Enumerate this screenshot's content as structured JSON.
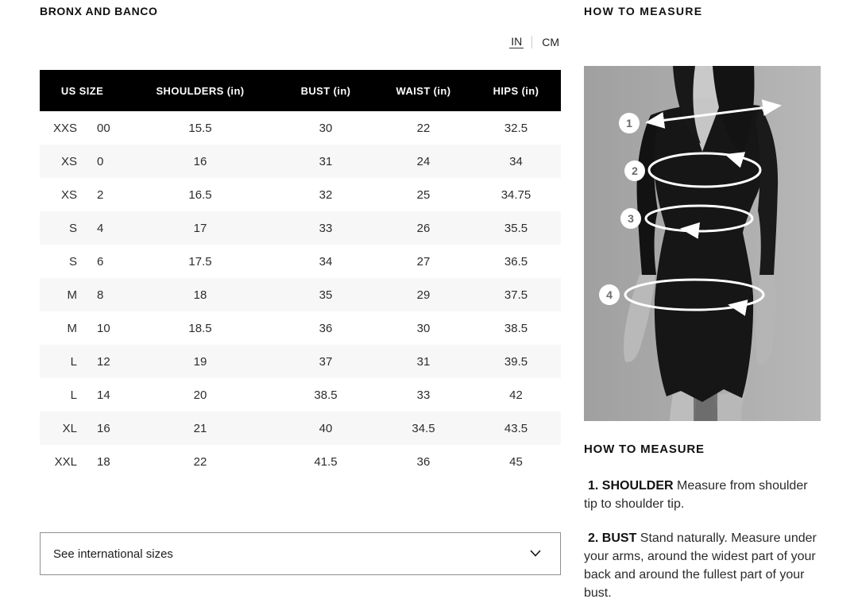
{
  "brand": "BRONX AND BANCO",
  "unit_toggle": {
    "in_label": "IN",
    "cm_label": "CM",
    "active": "IN"
  },
  "size_table": {
    "headers": [
      "US SIZE",
      "SHOULDERS (in)",
      "BUST (in)",
      "WAIST (in)",
      "HIPS (in)"
    ],
    "rows": [
      {
        "size": "XXS",
        "us": "00",
        "shoulders": "15.5",
        "bust": "30",
        "waist": "22",
        "hips": "32.5"
      },
      {
        "size": "XS",
        "us": "0",
        "shoulders": "16",
        "bust": "31",
        "waist": "24",
        "hips": "34"
      },
      {
        "size": "XS",
        "us": "2",
        "shoulders": "16.5",
        "bust": "32",
        "waist": "25",
        "hips": "34.75"
      },
      {
        "size": "S",
        "us": "4",
        "shoulders": "17",
        "bust": "33",
        "waist": "26",
        "hips": "35.5"
      },
      {
        "size": "S",
        "us": "6",
        "shoulders": "17.5",
        "bust": "34",
        "waist": "27",
        "hips": "36.5"
      },
      {
        "size": "M",
        "us": "8",
        "shoulders": "18",
        "bust": "35",
        "waist": "29",
        "hips": "37.5"
      },
      {
        "size": "M",
        "us": "10",
        "shoulders": "18.5",
        "bust": "36",
        "waist": "30",
        "hips": "38.5"
      },
      {
        "size": "L",
        "us": "12",
        "shoulders": "19",
        "bust": "37",
        "waist": "31",
        "hips": "39.5"
      },
      {
        "size": "L",
        "us": "14",
        "shoulders": "20",
        "bust": "38.5",
        "waist": "33",
        "hips": "42"
      },
      {
        "size": "XL",
        "us": "16",
        "shoulders": "21",
        "bust": "40",
        "waist": "34.5",
        "hips": "43.5"
      },
      {
        "size": "XXL",
        "us": "18",
        "shoulders": "22",
        "bust": "41.5",
        "waist": "36",
        "hips": "45"
      }
    ]
  },
  "international_dropdown": {
    "label": "See international sizes",
    "icon": "chevron-down-icon"
  },
  "measure_panel": {
    "title": "HOW TO MEASURE",
    "heading": "HOW TO MEASURE",
    "markers": [
      "1",
      "2",
      "3",
      "4"
    ],
    "instructions": [
      {
        "label": "1. SHOULDER",
        "text": " Measure from shoulder tip to shoulder tip."
      },
      {
        "label": "2. BUST",
        "text": " Stand naturally. Measure under your arms, around the widest part of your back and around the fullest part of your bust."
      }
    ]
  },
  "colors": {
    "table_header_bg": "#000000",
    "table_header_text": "#ffffff",
    "row_alt_bg": "#f7f7f7",
    "dropdown_border": "#8f8f8f",
    "photo_bg": "#aaaaaa",
    "dress": "#161616",
    "measure_marks": "#ffffff",
    "marker_number": "#6a6a6a"
  }
}
